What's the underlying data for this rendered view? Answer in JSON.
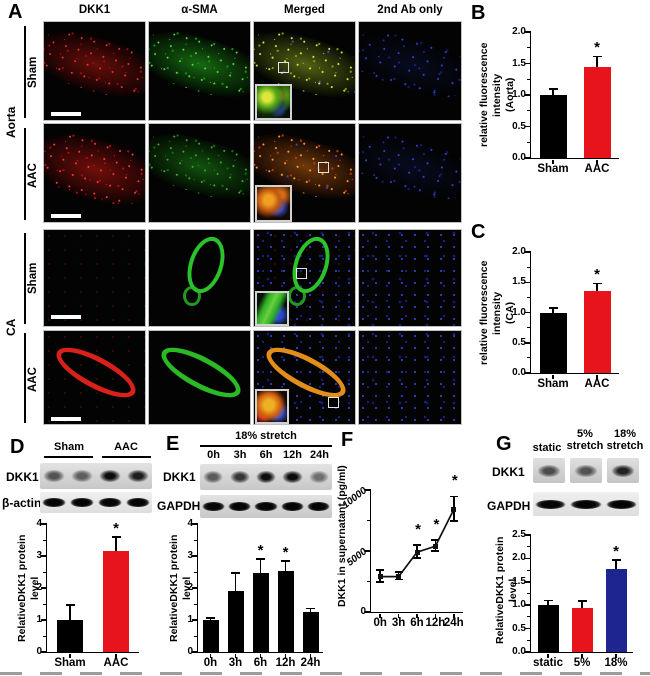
{
  "figure": {
    "panels": {
      "a": "A",
      "b": "B",
      "c": "C",
      "d": "D",
      "e": "E",
      "f": "F",
      "g": "G"
    },
    "panel_a": {
      "columns": [
        "DKK1",
        "α-SMA",
        "Merged",
        "2nd Ab only"
      ],
      "groups": [
        {
          "label": "Aorta",
          "rows": [
            "Sham",
            "AAC"
          ]
        },
        {
          "label": "CA",
          "rows": [
            "Sham",
            "AAC"
          ]
        }
      ]
    },
    "panel_d": {
      "headers": [
        "Sham",
        "AAC"
      ],
      "blots": [
        {
          "label": "DKK1",
          "bands": [
            0.5,
            0.42,
            1,
            0.88
          ],
          "kind": "target"
        },
        {
          "label": "β-actin",
          "bands": [
            1,
            1,
            1,
            1
          ],
          "kind": "control"
        }
      ]
    },
    "panel_e": {
      "header": "18% stretch",
      "lanes": [
        "0h",
        "3h",
        "6h",
        "12h",
        "24h"
      ],
      "blots": [
        {
          "label": "DKK1",
          "bands": [
            0.45,
            0.7,
            1,
            1,
            0.3
          ],
          "kind": "target"
        },
        {
          "label": "GAPDH",
          "bands": [
            1,
            1,
            1,
            1,
            1
          ],
          "kind": "control"
        }
      ]
    },
    "panel_g": {
      "lane1": "static",
      "lane2_line1": "5%",
      "lane2_line2": "stretch",
      "lane3_line1": "18%",
      "lane3_line2": "stretch",
      "blots": [
        {
          "label": "DKK1",
          "bands": [
            0.55,
            0.5,
            0.85
          ],
          "kind": "target"
        },
        {
          "label": "GAPDH",
          "bands": [
            1,
            1,
            1
          ],
          "kind": "control"
        }
      ]
    }
  },
  "chart_data": [
    {
      "panel": "B",
      "type": "bar",
      "ylabel_lines": [
        "relative fluorescence intensity",
        "(Aorta)"
      ],
      "categories": [
        "Sham",
        "AAC"
      ],
      "values": [
        1.0,
        1.45
      ],
      "errors": [
        0.08,
        0.15
      ],
      "significant": [
        false,
        true
      ],
      "colors": [
        "#000000",
        "#e8141c"
      ],
      "ylim": [
        0,
        2
      ],
      "yticks": [
        0,
        0.5,
        1,
        1.5,
        2
      ],
      "tick_decimals": 1
    },
    {
      "panel": "C",
      "type": "bar",
      "ylabel_lines": [
        "relative fluorescence intensity",
        "(CA)"
      ],
      "categories": [
        "Sham",
        "AAC"
      ],
      "values": [
        1.0,
        1.35
      ],
      "errors": [
        0.06,
        0.12
      ],
      "significant": [
        false,
        true
      ],
      "colors": [
        "#000000",
        "#e8141c"
      ],
      "ylim": [
        0,
        2
      ],
      "yticks": [
        0,
        0.5,
        1,
        1.5,
        2
      ],
      "tick_decimals": 1
    },
    {
      "panel": "D",
      "type": "bar",
      "ylabel": "RelativeDKK1 protein level",
      "categories": [
        "Sham",
        "AAC"
      ],
      "values": [
        1.0,
        3.15
      ],
      "errors": [
        0.45,
        0.42
      ],
      "significant": [
        false,
        true
      ],
      "colors": [
        "#000000",
        "#e8141c"
      ],
      "ylim": [
        0,
        4
      ],
      "yticks": [
        0,
        1,
        2,
        3,
        4
      ],
      "tick_decimals": 0
    },
    {
      "panel": "E",
      "type": "bar",
      "ylabel": "RelativeDKK1 protein level",
      "categories": [
        "0h",
        "3h",
        "6h",
        "12h",
        "24h"
      ],
      "values": [
        1.0,
        1.92,
        2.47,
        2.52,
        1.25
      ],
      "errors": [
        0.04,
        0.52,
        0.42,
        0.3,
        0.08
      ],
      "significant": [
        false,
        false,
        true,
        true,
        false
      ],
      "colors": [
        "#000000",
        "#000000",
        "#000000",
        "#000000",
        "#000000"
      ],
      "ylim": [
        0,
        4
      ],
      "yticks": [
        0,
        1,
        2,
        3,
        4
      ],
      "tick_decimals": 0
    },
    {
      "panel": "F",
      "type": "line",
      "ylabel": "DKK1 in supernatant (pg/ml)",
      "x": [
        "0h",
        "3h",
        "6h",
        "12h",
        "24h"
      ],
      "values": [
        2900,
        2900,
        4900,
        5400,
        8400
      ],
      "errors": [
        500,
        300,
        550,
        450,
        1000
      ],
      "significant": [
        false,
        false,
        true,
        true,
        true
      ],
      "line_color": "#111111",
      "ylim": [
        0,
        10000
      ],
      "yticks": [
        0,
        5000,
        10000
      ],
      "tick_decimals": 0,
      "tick_angle": -38
    },
    {
      "panel": "G",
      "type": "bar",
      "ylabel": "RelativeDKK1 protein level",
      "categories": [
        "static",
        "5%",
        "18%"
      ],
      "values": [
        1.0,
        0.93,
        1.77
      ],
      "errors": [
        0.09,
        0.14,
        0.18
      ],
      "significant": [
        false,
        false,
        true
      ],
      "colors": [
        "#000000",
        "#e8141c",
        "#1e2590"
      ],
      "ylim": [
        0,
        2.5
      ],
      "yticks": [
        0,
        0.5,
        1,
        1.5,
        2,
        2.5
      ],
      "tick_decimals": 1
    }
  ]
}
